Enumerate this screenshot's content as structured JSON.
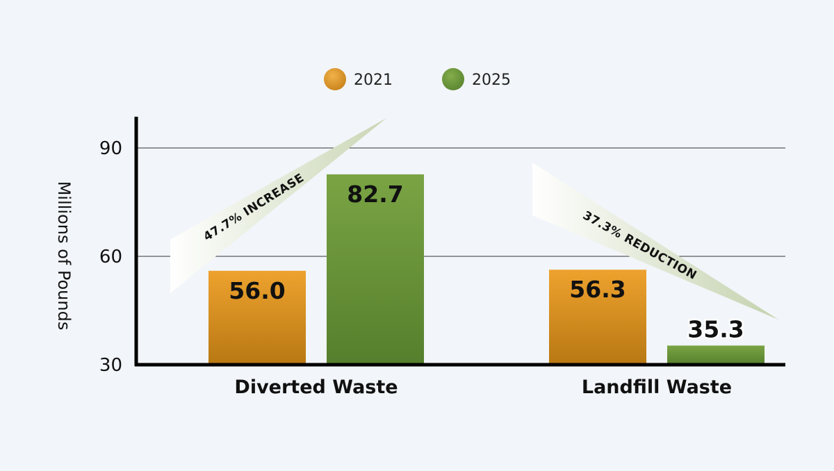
{
  "chart_data": {
    "type": "bar",
    "categories": [
      "Diverted Waste",
      "Landfill Waste"
    ],
    "series": [
      {
        "name": "2021",
        "values": [
          56.0,
          56.3
        ],
        "labels": [
          "56.0",
          "56.3"
        ],
        "color": "#e49a2a"
      },
      {
        "name": "2025",
        "values": [
          82.7,
          35.3
        ],
        "labels": [
          "82.7",
          "35.3"
        ],
        "color": "#6e9a3c"
      }
    ],
    "ylabel": "Millions of Pounds",
    "ylim": [
      30,
      90
    ],
    "yticks": [
      "30",
      "60",
      "90"
    ],
    "grid": true,
    "legend_position": "top-center",
    "annotations": [
      {
        "category": "Diverted Waste",
        "text": "47.7% INCREASE",
        "direction": "up"
      },
      {
        "category": "Landfill Waste",
        "text": "37.3% REDUCTION",
        "direction": "down"
      }
    ]
  }
}
